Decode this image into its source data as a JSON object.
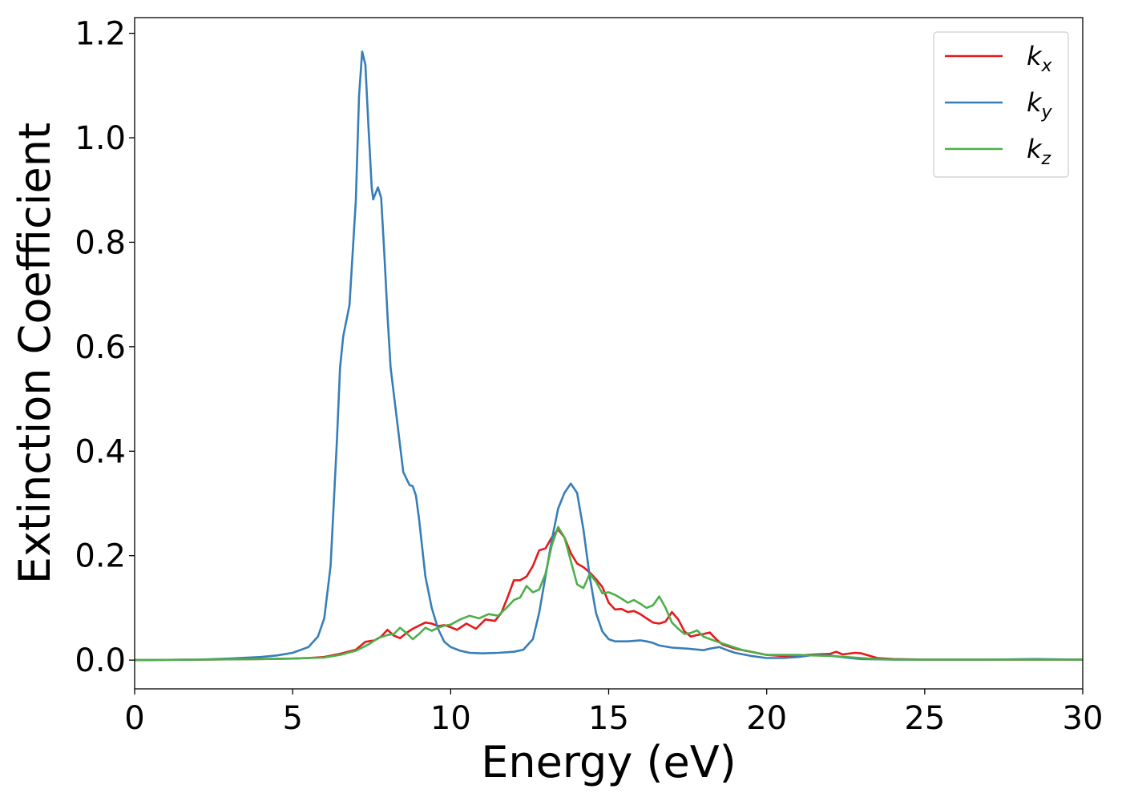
{
  "chart_data": {
    "type": "line",
    "xlabel": "Energy (eV)",
    "ylabel": "Extinction Coefficient",
    "xlim": [
      0,
      30
    ],
    "ylim": [
      -0.055,
      1.23
    ],
    "xticks": [
      0,
      5,
      10,
      15,
      20,
      25,
      30
    ],
    "xtick_labels": [
      "0",
      "5",
      "10",
      "15",
      "20",
      "25",
      "30"
    ],
    "yticks": [
      0.0,
      0.2,
      0.4,
      0.6,
      0.8,
      1.0,
      1.2
    ],
    "ytick_labels": [
      "0.0",
      "0.2",
      "0.4",
      "0.6",
      "0.8",
      "1.0",
      "1.2"
    ],
    "grid": false,
    "legend_position": "top-right",
    "series": [
      {
        "name": "k_x",
        "legend_main": "k",
        "legend_sub": "x",
        "color": "#e41a1c",
        "points": [
          [
            0,
            0
          ],
          [
            2,
            0.001
          ],
          [
            4,
            0.002
          ],
          [
            5,
            0.003
          ],
          [
            5.5,
            0.004
          ],
          [
            6,
            0.006
          ],
          [
            6.5,
            0.012
          ],
          [
            7,
            0.02
          ],
          [
            7.3,
            0.035
          ],
          [
            7.6,
            0.038
          ],
          [
            7.8,
            0.045
          ],
          [
            8,
            0.058
          ],
          [
            8.2,
            0.047
          ],
          [
            8.4,
            0.042
          ],
          [
            8.6,
            0.052
          ],
          [
            8.8,
            0.06
          ],
          [
            9,
            0.066
          ],
          [
            9.2,
            0.072
          ],
          [
            9.4,
            0.07
          ],
          [
            9.6,
            0.065
          ],
          [
            9.8,
            0.067
          ],
          [
            10,
            0.063
          ],
          [
            10.2,
            0.058
          ],
          [
            10.5,
            0.07
          ],
          [
            10.8,
            0.06
          ],
          [
            11.1,
            0.078
          ],
          [
            11.4,
            0.075
          ],
          [
            11.6,
            0.09
          ],
          [
            11.8,
            0.12
          ],
          [
            12,
            0.153
          ],
          [
            12.2,
            0.153
          ],
          [
            12.4,
            0.16
          ],
          [
            12.6,
            0.18
          ],
          [
            12.8,
            0.21
          ],
          [
            13,
            0.214
          ],
          [
            13.2,
            0.235
          ],
          [
            13.4,
            0.25
          ],
          [
            13.6,
            0.235
          ],
          [
            13.8,
            0.205
          ],
          [
            14,
            0.185
          ],
          [
            14.2,
            0.178
          ],
          [
            14.4,
            0.168
          ],
          [
            14.6,
            0.155
          ],
          [
            14.8,
            0.14
          ],
          [
            15,
            0.11
          ],
          [
            15.2,
            0.097
          ],
          [
            15.4,
            0.098
          ],
          [
            15.6,
            0.092
          ],
          [
            15.8,
            0.094
          ],
          [
            16,
            0.088
          ],
          [
            16.2,
            0.08
          ],
          [
            16.4,
            0.072
          ],
          [
            16.6,
            0.07
          ],
          [
            16.8,
            0.074
          ],
          [
            17,
            0.092
          ],
          [
            17.2,
            0.078
          ],
          [
            17.4,
            0.055
          ],
          [
            17.6,
            0.045
          ],
          [
            17.8,
            0.048
          ],
          [
            18,
            0.05
          ],
          [
            18.2,
            0.053
          ],
          [
            18.4,
            0.04
          ],
          [
            18.6,
            0.03
          ],
          [
            19,
            0.022
          ],
          [
            19.5,
            0.016
          ],
          [
            20,
            0.01
          ],
          [
            20.5,
            0.008
          ],
          [
            21,
            0.009
          ],
          [
            21.5,
            0.011
          ],
          [
            22,
            0.012
          ],
          [
            22.2,
            0.016
          ],
          [
            22.4,
            0.011
          ],
          [
            22.8,
            0.014
          ],
          [
            23,
            0.013
          ],
          [
            23.5,
            0.004
          ],
          [
            24,
            0.002
          ],
          [
            25,
            0.001
          ],
          [
            30,
            0.001
          ]
        ]
      },
      {
        "name": "k_y",
        "legend_main": "k",
        "legend_sub": "y",
        "color": "#377eb8",
        "points": [
          [
            0,
            0
          ],
          [
            2,
            0.001
          ],
          [
            3,
            0.003
          ],
          [
            4,
            0.006
          ],
          [
            4.5,
            0.009
          ],
          [
            5,
            0.014
          ],
          [
            5.5,
            0.025
          ],
          [
            5.8,
            0.045
          ],
          [
            6,
            0.08
          ],
          [
            6.2,
            0.18
          ],
          [
            6.4,
            0.42
          ],
          [
            6.5,
            0.56
          ],
          [
            6.6,
            0.62
          ],
          [
            6.8,
            0.68
          ],
          [
            7,
            0.88
          ],
          [
            7.1,
            1.08
          ],
          [
            7.2,
            1.165
          ],
          [
            7.3,
            1.14
          ],
          [
            7.4,
            1.02
          ],
          [
            7.5,
            0.905
          ],
          [
            7.55,
            0.882
          ],
          [
            7.6,
            0.89
          ],
          [
            7.7,
            0.905
          ],
          [
            7.8,
            0.885
          ],
          [
            7.9,
            0.78
          ],
          [
            8,
            0.66
          ],
          [
            8.1,
            0.56
          ],
          [
            8.3,
            0.46
          ],
          [
            8.5,
            0.36
          ],
          [
            8.7,
            0.335
          ],
          [
            8.8,
            0.333
          ],
          [
            8.9,
            0.315
          ],
          [
            9,
            0.27
          ],
          [
            9.2,
            0.16
          ],
          [
            9.4,
            0.1
          ],
          [
            9.6,
            0.06
          ],
          [
            9.8,
            0.035
          ],
          [
            10,
            0.025
          ],
          [
            10.3,
            0.018
          ],
          [
            10.6,
            0.014
          ],
          [
            11,
            0.013
          ],
          [
            11.5,
            0.014
          ],
          [
            12,
            0.016
          ],
          [
            12.3,
            0.02
          ],
          [
            12.6,
            0.04
          ],
          [
            12.8,
            0.09
          ],
          [
            13,
            0.16
          ],
          [
            13.2,
            0.23
          ],
          [
            13.4,
            0.29
          ],
          [
            13.6,
            0.32
          ],
          [
            13.8,
            0.338
          ],
          [
            14,
            0.32
          ],
          [
            14.2,
            0.25
          ],
          [
            14.4,
            0.16
          ],
          [
            14.6,
            0.09
          ],
          [
            14.8,
            0.055
          ],
          [
            15,
            0.04
          ],
          [
            15.2,
            0.036
          ],
          [
            15.6,
            0.036
          ],
          [
            16,
            0.038
          ],
          [
            16.2,
            0.036
          ],
          [
            16.4,
            0.033
          ],
          [
            16.6,
            0.028
          ],
          [
            17,
            0.024
          ],
          [
            17.5,
            0.022
          ],
          [
            18,
            0.019
          ],
          [
            18.2,
            0.022
          ],
          [
            18.5,
            0.025
          ],
          [
            18.8,
            0.018
          ],
          [
            19,
            0.014
          ],
          [
            19.5,
            0.008
          ],
          [
            20,
            0.004
          ],
          [
            20.5,
            0.004
          ],
          [
            21,
            0.006
          ],
          [
            21.5,
            0.01
          ],
          [
            22,
            0.009
          ],
          [
            22.5,
            0.005
          ],
          [
            23,
            0.002
          ],
          [
            24,
            0.001
          ],
          [
            25,
            0.001
          ],
          [
            27,
            0.001
          ],
          [
            28.5,
            0.002
          ],
          [
            30,
            0.001
          ]
        ]
      },
      {
        "name": "k_z",
        "legend_main": "k",
        "legend_sub": "z",
        "color": "#4daf4a",
        "points": [
          [
            0,
            0
          ],
          [
            2,
            0.001
          ],
          [
            4,
            0.002
          ],
          [
            5,
            0.003
          ],
          [
            5.5,
            0.004
          ],
          [
            6,
            0.005
          ],
          [
            6.5,
            0.01
          ],
          [
            7,
            0.018
          ],
          [
            7.4,
            0.03
          ],
          [
            7.7,
            0.042
          ],
          [
            8,
            0.048
          ],
          [
            8.2,
            0.05
          ],
          [
            8.4,
            0.062
          ],
          [
            8.6,
            0.052
          ],
          [
            8.8,
            0.04
          ],
          [
            9,
            0.05
          ],
          [
            9.2,
            0.062
          ],
          [
            9.4,
            0.056
          ],
          [
            9.6,
            0.062
          ],
          [
            9.8,
            0.066
          ],
          [
            10,
            0.068
          ],
          [
            10.3,
            0.078
          ],
          [
            10.6,
            0.085
          ],
          [
            10.9,
            0.08
          ],
          [
            11.2,
            0.088
          ],
          [
            11.5,
            0.085
          ],
          [
            11.8,
            0.102
          ],
          [
            12,
            0.115
          ],
          [
            12.2,
            0.12
          ],
          [
            12.4,
            0.142
          ],
          [
            12.6,
            0.13
          ],
          [
            12.8,
            0.135
          ],
          [
            13,
            0.165
          ],
          [
            13.2,
            0.22
          ],
          [
            13.4,
            0.255
          ],
          [
            13.6,
            0.235
          ],
          [
            13.8,
            0.19
          ],
          [
            14,
            0.145
          ],
          [
            14.2,
            0.138
          ],
          [
            14.4,
            0.165
          ],
          [
            14.6,
            0.15
          ],
          [
            14.8,
            0.128
          ],
          [
            15,
            0.13
          ],
          [
            15.2,
            0.125
          ],
          [
            15.4,
            0.118
          ],
          [
            15.6,
            0.11
          ],
          [
            15.8,
            0.115
          ],
          [
            16,
            0.108
          ],
          [
            16.2,
            0.1
          ],
          [
            16.4,
            0.105
          ],
          [
            16.6,
            0.122
          ],
          [
            16.8,
            0.1
          ],
          [
            17,
            0.072
          ],
          [
            17.2,
            0.06
          ],
          [
            17.4,
            0.05
          ],
          [
            17.6,
            0.052
          ],
          [
            17.8,
            0.057
          ],
          [
            18,
            0.045
          ],
          [
            18.4,
            0.036
          ],
          [
            18.8,
            0.028
          ],
          [
            19.2,
            0.02
          ],
          [
            19.6,
            0.015
          ],
          [
            20,
            0.01
          ],
          [
            20.5,
            0.01
          ],
          [
            21,
            0.01
          ],
          [
            21.5,
            0.009
          ],
          [
            22,
            0.008
          ],
          [
            22.5,
            0.006
          ],
          [
            23,
            0.004
          ],
          [
            23.5,
            0.002
          ],
          [
            24,
            0.001
          ],
          [
            25,
            0.001
          ],
          [
            30,
            0.001
          ]
        ]
      }
    ]
  }
}
